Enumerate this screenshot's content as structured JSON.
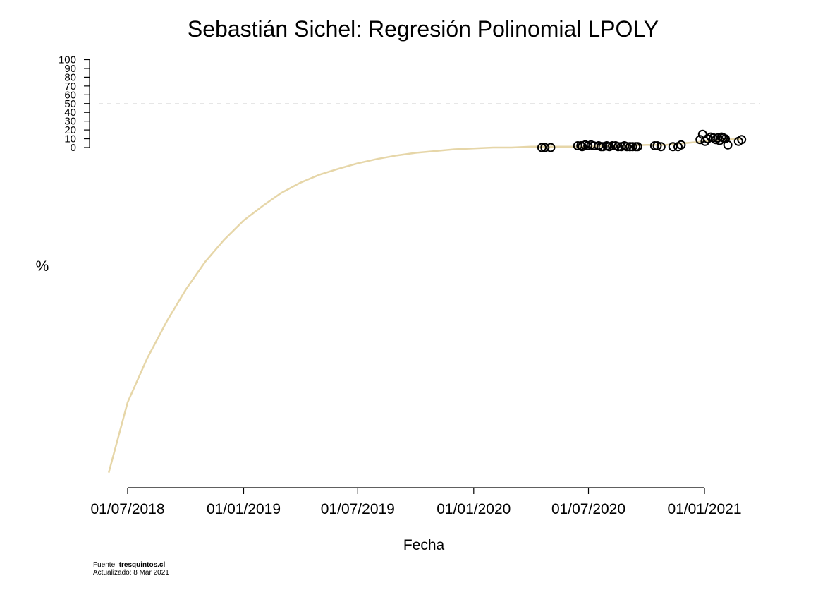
{
  "chart_data": {
    "type": "scatter",
    "title": "Sebastián Sichel: Regresión Polinomial LPOLY",
    "xlabel": "Fecha",
    "ylabel": "%",
    "x_axis": "date",
    "x_ticks": [
      "2018-07-01",
      "2019-01-01",
      "2019-07-01",
      "2020-01-01",
      "2020-07-01",
      "2021-01-01"
    ],
    "x_tick_labels": [
      "01/07/2018",
      "01/01/2019",
      "01/07/2019",
      "01/01/2020",
      "01/07/2020",
      "01/01/2021"
    ],
    "y_ticks": [
      0,
      10,
      20,
      30,
      40,
      50,
      60,
      70,
      80,
      90,
      100
    ],
    "y_tick_labels": [
      "0",
      "10",
      "20",
      "30",
      "40",
      "50",
      "60",
      "70",
      "80",
      "90",
      "100"
    ],
    "reference_line": {
      "y": 50,
      "style": "dashed",
      "color": "#dddddd"
    },
    "grid": false,
    "legend": "none",
    "series": [
      {
        "type": "scatter",
        "marker": "open-circle",
        "color": "#000000",
        "points": [
          {
            "x": "2020-04-18",
            "y": 0
          },
          {
            "x": "2020-04-23",
            "y": 0
          },
          {
            "x": "2020-05-02",
            "y": 0
          },
          {
            "x": "2020-06-14",
            "y": 2
          },
          {
            "x": "2020-06-19",
            "y": 2
          },
          {
            "x": "2020-06-21",
            "y": 1
          },
          {
            "x": "2020-06-26",
            "y": 3
          },
          {
            "x": "2020-06-30",
            "y": 2
          },
          {
            "x": "2020-07-05",
            "y": 3
          },
          {
            "x": "2020-07-09",
            "y": 2
          },
          {
            "x": "2020-07-17",
            "y": 2
          },
          {
            "x": "2020-07-21",
            "y": 1
          },
          {
            "x": "2020-07-24",
            "y": 1
          },
          {
            "x": "2020-07-30",
            "y": 2
          },
          {
            "x": "2020-08-03",
            "y": 1
          },
          {
            "x": "2020-08-08",
            "y": 2
          },
          {
            "x": "2020-08-13",
            "y": 2
          },
          {
            "x": "2020-08-17",
            "y": 1
          },
          {
            "x": "2020-08-22",
            "y": 1
          },
          {
            "x": "2020-08-27",
            "y": 2
          },
          {
            "x": "2020-08-31",
            "y": 1
          },
          {
            "x": "2020-09-05",
            "y": 1
          },
          {
            "x": "2020-09-09",
            "y": 1
          },
          {
            "x": "2020-09-14",
            "y": 1
          },
          {
            "x": "2020-09-17",
            "y": 1
          },
          {
            "x": "2020-10-14",
            "y": 2
          },
          {
            "x": "2020-10-18",
            "y": 2
          },
          {
            "x": "2020-10-24",
            "y": 1
          },
          {
            "x": "2020-11-12",
            "y": 1
          },
          {
            "x": "2020-11-20",
            "y": 1
          },
          {
            "x": "2020-11-25",
            "y": 3
          },
          {
            "x": "2020-12-25",
            "y": 9
          },
          {
            "x": "2020-12-29",
            "y": 15
          },
          {
            "x": "2021-01-02",
            "y": 7
          },
          {
            "x": "2021-01-06",
            "y": 10
          },
          {
            "x": "2021-01-11",
            "y": 12
          },
          {
            "x": "2021-01-15",
            "y": 11
          },
          {
            "x": "2021-01-19",
            "y": 9
          },
          {
            "x": "2021-01-22",
            "y": 11
          },
          {
            "x": "2021-01-25",
            "y": 8
          },
          {
            "x": "2021-01-28",
            "y": 12
          },
          {
            "x": "2021-01-31",
            "y": 11
          },
          {
            "x": "2021-02-03",
            "y": 10
          },
          {
            "x": "2021-02-07",
            "y": 3
          },
          {
            "x": "2021-02-24",
            "y": 7
          },
          {
            "x": "2021-03-01",
            "y": 9
          }
        ]
      },
      {
        "type": "line",
        "color": "#e6d6a8",
        "points": [
          {
            "x": "2018-06-01",
            "y": -370
          },
          {
            "x": "2018-07-01",
            "y": -290
          },
          {
            "x": "2018-08-01",
            "y": -240
          },
          {
            "x": "2018-09-01",
            "y": -198
          },
          {
            "x": "2018-10-01",
            "y": -162
          },
          {
            "x": "2018-11-01",
            "y": -130
          },
          {
            "x": "2018-12-01",
            "y": -105
          },
          {
            "x": "2019-01-01",
            "y": -83
          },
          {
            "x": "2019-02-01",
            "y": -66
          },
          {
            "x": "2019-03-01",
            "y": -52
          },
          {
            "x": "2019-04-01",
            "y": -40
          },
          {
            "x": "2019-05-01",
            "y": -31
          },
          {
            "x": "2019-06-01",
            "y": -24
          },
          {
            "x": "2019-07-01",
            "y": -18
          },
          {
            "x": "2019-08-01",
            "y": -13
          },
          {
            "x": "2019-09-01",
            "y": -9
          },
          {
            "x": "2019-10-01",
            "y": -6
          },
          {
            "x": "2019-11-01",
            "y": -4
          },
          {
            "x": "2019-12-01",
            "y": -2
          },
          {
            "x": "2020-01-01",
            "y": -1
          },
          {
            "x": "2020-02-01",
            "y": 0
          },
          {
            "x": "2020-03-01",
            "y": 0
          },
          {
            "x": "2020-04-01",
            "y": 1
          },
          {
            "x": "2020-05-01",
            "y": 1
          },
          {
            "x": "2020-06-01",
            "y": 1
          },
          {
            "x": "2020-07-01",
            "y": 1
          },
          {
            "x": "2020-08-01",
            "y": 2
          },
          {
            "x": "2020-09-01",
            "y": 2
          },
          {
            "x": "2020-10-01",
            "y": 3
          },
          {
            "x": "2020-11-01",
            "y": 3
          },
          {
            "x": "2020-12-01",
            "y": 5
          },
          {
            "x": "2021-01-01",
            "y": 7
          },
          {
            "x": "2021-02-01",
            "y": 9
          },
          {
            "x": "2021-03-01",
            "y": 10
          }
        ]
      }
    ]
  },
  "footer": {
    "source_prefix": "Fuente: ",
    "source_name": "tresquintos.cl",
    "updated": "Actualizado: 8 Mar 2021"
  }
}
